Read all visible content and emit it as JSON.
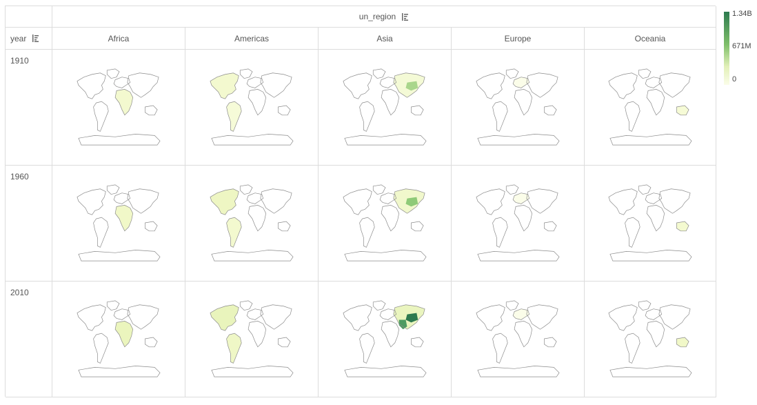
{
  "header": {
    "column_field": "un_region",
    "row_field": "year"
  },
  "columns": [
    "Africa",
    "Americas",
    "Asia",
    "Europe",
    "Oceania"
  ],
  "rows": [
    "1910",
    "1960",
    "2010"
  ],
  "legend": {
    "max": "1.34B",
    "mid": "671M",
    "min": "0"
  },
  "colors": {
    "low": "#fbfde9",
    "mid": "#7fbf6a",
    "high": "#2d7a4f",
    "border": "#888888"
  },
  "icons": {
    "sort": "sort-descending-icon"
  }
}
